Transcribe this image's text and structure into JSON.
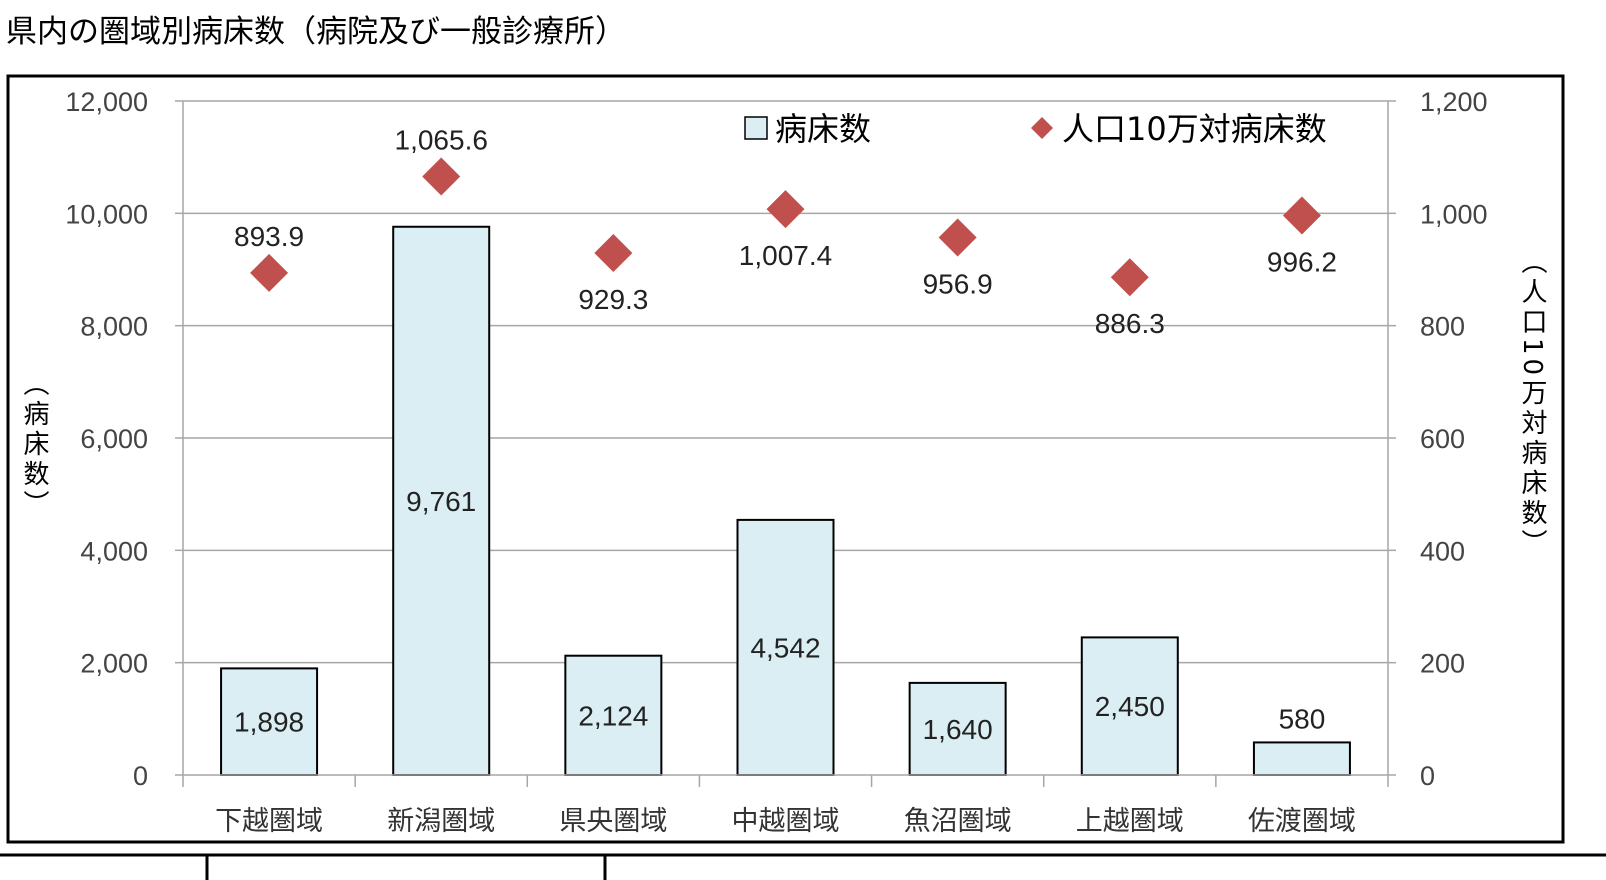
{
  "title": "県内の圏域別病床数（病院及び一般診療所）",
  "chart_data": {
    "type": "bar+scatter",
    "categories": [
      "下越圏域",
      "新潟圏域",
      "県央圏域",
      "中越圏域",
      "魚沼圏域",
      "上越圏域",
      "佐渡圏域"
    ],
    "series": [
      {
        "name": "病床数",
        "type": "bar",
        "axis": "left",
        "values": [
          1898,
          9761,
          2124,
          4542,
          1640,
          2450,
          580
        ],
        "labels": [
          "1,898",
          "9,761",
          "2,124",
          "4,542",
          "1,640",
          "2,450",
          "580"
        ],
        "color": "#DAEEF3"
      },
      {
        "name": "人口10万対病床数",
        "type": "scatter",
        "axis": "right",
        "marker": "diamond",
        "values": [
          893.9,
          1065.6,
          929.3,
          1007.4,
          956.9,
          886.3,
          996.2
        ],
        "labels": [
          "893.9",
          "1,065.6",
          "929.3",
          "1,007.4",
          "956.9",
          "886.3",
          "996.2"
        ],
        "color": "#C0504D"
      }
    ],
    "ylabel": "（病床数）",
    "y2label": "（人口10万対病床数）",
    "ylim": [
      0,
      12000
    ],
    "y2lim": [
      0,
      1200
    ],
    "yticks": [
      "0",
      "2,000",
      "4,000",
      "6,000",
      "8,000",
      "10,000",
      "12,000"
    ],
    "y2ticks": [
      "0",
      "200",
      "400",
      "600",
      "800",
      "1,000",
      "1,200"
    ],
    "grid": true,
    "legend": "top-right"
  }
}
